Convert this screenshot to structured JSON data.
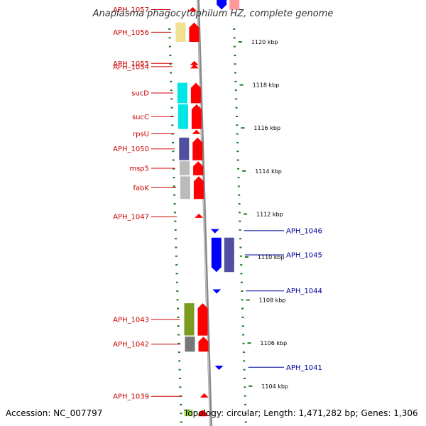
{
  "title": "Anaplasma phagocytophilum HZ, complete genome",
  "footer": {
    "accession": "Accession: NC_007797",
    "topology": "Topology: circular; Length: 1,471,282 bp; Genes: 1,306"
  },
  "colors": {
    "forward_label": "#cc0000",
    "reverse_label": "#000099",
    "forward_arrow": "#ff0000",
    "reverse_arrow": "#0000ff",
    "backbone": "#888888",
    "dotted_ring": "#1a7a1a"
  },
  "scale_ticks": [
    {
      "kbp": 1120,
      "label": "1120 kbp"
    },
    {
      "kbp": 1118,
      "label": "1118 kbp"
    },
    {
      "kbp": 1116,
      "label": "1116 kbp"
    },
    {
      "kbp": 1114,
      "label": "1114 kbp"
    },
    {
      "kbp": 1112,
      "label": "1112 kbp"
    },
    {
      "kbp": 1110,
      "label": "1110 kbp"
    },
    {
      "kbp": 1108,
      "label": "1108 kbp"
    },
    {
      "kbp": 1106,
      "label": "1106 kbp"
    },
    {
      "kbp": 1104,
      "label": "1104 kbp"
    }
  ],
  "forward_genes": [
    {
      "label": "APH_1057",
      "start": 1121.55,
      "end": 1121.45,
      "cog": ""
    },
    {
      "label": "APH_1056",
      "start": 1120.9,
      "end": 1120.0,
      "cog": "#f0e090"
    },
    {
      "label": "APH_1055",
      "start": 1119.05,
      "end": 1118.95,
      "cog": ""
    },
    {
      "label": "APH_1054",
      "start": 1118.9,
      "end": 1118.8,
      "cog": ""
    },
    {
      "label": "sucD",
      "start": 1118.1,
      "end": 1117.15,
      "cog": "#00e5e5"
    },
    {
      "label": "sucC",
      "start": 1117.1,
      "end": 1115.95,
      "cog": "#00e5e5"
    },
    {
      "label": "rpsU",
      "start": 1115.85,
      "end": 1115.6,
      "cog": "#ff9999"
    },
    {
      "label": "APH_1050",
      "start": 1115.55,
      "end": 1114.5,
      "cog": "#5050a0"
    },
    {
      "label": "msp5",
      "start": 1114.45,
      "end": 1113.8,
      "cog": "#bbbbbb"
    },
    {
      "label": "fabK",
      "start": 1113.75,
      "end": 1112.7,
      "cog": "#bbbbbb"
    },
    {
      "label": "APH_1047",
      "start": 1111.95,
      "end": 1111.8,
      "cog": ""
    },
    {
      "label": "APH_1043",
      "start": 1107.85,
      "end": 1106.35,
      "cog": "#7a9a20"
    },
    {
      "label": "APH_1042",
      "start": 1106.3,
      "end": 1105.6,
      "cog": "#777777"
    },
    {
      "label": "APH_1039",
      "start": 1103.6,
      "end": 1103.45,
      "cog": ""
    }
  ],
  "reverse_genes": [
    {
      "label": "APH_1046",
      "start": 1111.3,
      "end": 1111.15,
      "cog": ""
    },
    {
      "label": "APH_1045",
      "start": 1110.9,
      "end": 1109.3,
      "cog": "#5050a0"
    },
    {
      "label": "APH_1044",
      "start": 1108.5,
      "end": 1108.35,
      "cog": ""
    },
    {
      "label": "APH_1041",
      "start": 1104.95,
      "end": 1104.8,
      "cog": ""
    }
  ],
  "edge_genes": [
    {
      "label": "",
      "strand": "reverse",
      "start": 1121.95,
      "end": 1121.5,
      "cog": "#ff9999"
    },
    {
      "label": "",
      "strand": "forward",
      "start": 1102.9,
      "end": 1102.6,
      "cog": "#a0e040"
    }
  ]
}
